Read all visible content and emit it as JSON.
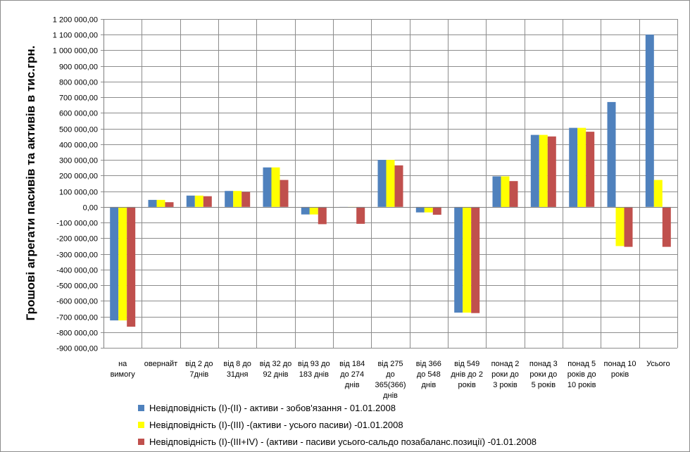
{
  "chart_data": {
    "type": "bar",
    "title": "",
    "xlabel": "",
    "ylabel": "Грошові агрегати  пасивів та активів  в тис.грн.",
    "ylim": [
      -900000,
      1200000
    ],
    "ytick_step": 100000,
    "ytick_labels": [
      "1 200 000,00",
      "1 100 000,00",
      "1 000 000,00",
      "900 000,00",
      "800 000,00",
      "700 000,00",
      "600 000,00",
      "500 000,00",
      "400 000,00",
      "300 000,00",
      "200 000,00",
      "100 000,00",
      "0,00",
      "-100 000,00",
      "-200 000,00",
      "-300 000,00",
      "-400 000,00",
      "-500 000,00",
      "-600 000,00",
      "-700 000,00",
      "-800 000,00",
      "-900 000,00"
    ],
    "categories": [
      [
        "на",
        "вимогу"
      ],
      [
        "овернайт"
      ],
      [
        "від 2 до",
        "7днів"
      ],
      [
        "від 8 до",
        "31дня"
      ],
      [
        "від 32 до",
        "92 днів"
      ],
      [
        "від 93 до",
        "183 днів"
      ],
      [
        "від 184",
        "до 274",
        "днів"
      ],
      [
        "від 275",
        "до",
        "365(366)",
        "днів"
      ],
      [
        "від 366",
        "до 548",
        "днів"
      ],
      [
        "від 549",
        "днів до 2",
        "років"
      ],
      [
        "понад 2",
        "роки до",
        "3 років"
      ],
      [
        "понад 3",
        "роки до",
        "5 років"
      ],
      [
        "понад 5",
        "років до",
        "10 років"
      ],
      [
        "понад 10",
        "років"
      ],
      [
        "Усього"
      ]
    ],
    "series": [
      {
        "name": "Невідповідність (I)-(II) - активи - зобов'язання - 01.01.2008",
        "color": "#4f81bd",
        "values": [
          -725000,
          45000,
          72000,
          102000,
          252000,
          -48000,
          -5000,
          300000,
          -35000,
          -675000,
          195000,
          460000,
          505000,
          670000,
          1100000
        ]
      },
      {
        "name": "Невідповідність (I)-(III) -(активи - усього пасиви) -01.01.2008",
        "color": "#ffff00",
        "values": [
          -725000,
          45000,
          72000,
          102000,
          252000,
          -48000,
          -5000,
          300000,
          -35000,
          -675000,
          195000,
          460000,
          505000,
          -250000,
          172000
        ]
      },
      {
        "name": "Невідповідність (I)-(III+IV) - (активи - пасиви усього-сальдо позабаланс.позиції) -01.01.2008",
        "color": "#c0504d",
        "values": [
          -765000,
          30000,
          68000,
          95000,
          172000,
          -110000,
          -108000,
          265000,
          -50000,
          -678000,
          165000,
          450000,
          480000,
          -255000,
          -255000
        ]
      }
    ],
    "legend_position": "bottom",
    "grid": true
  }
}
